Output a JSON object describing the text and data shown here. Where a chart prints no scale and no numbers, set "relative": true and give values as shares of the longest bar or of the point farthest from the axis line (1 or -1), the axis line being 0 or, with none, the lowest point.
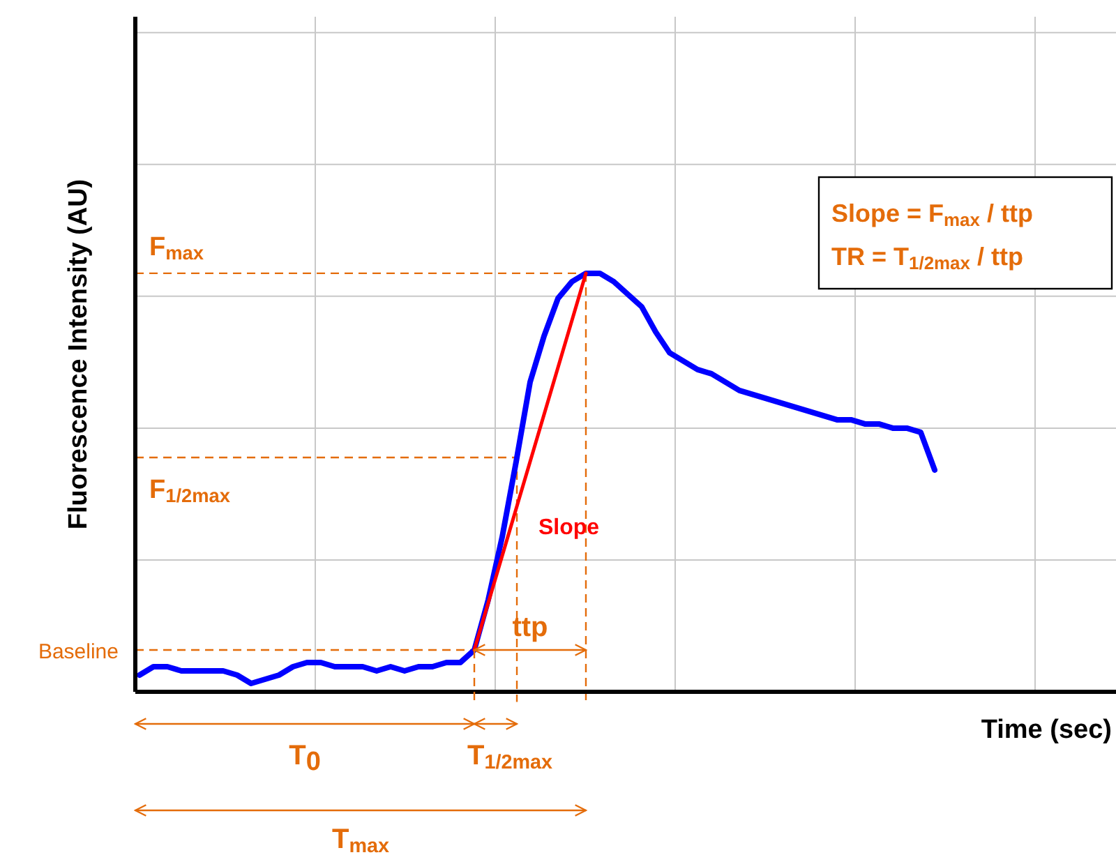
{
  "chart_data": {
    "type": "line",
    "relative": true,
    "xlabel": "Time (sec)",
    "ylabel": "Fluorescence Intensity (AU)",
    "categories": [
      null,
      null,
      null,
      null,
      null,
      null,
      null,
      null,
      null,
      null,
      null,
      null,
      null,
      null,
      null,
      null,
      null,
      null,
      null,
      null,
      null,
      null,
      null,
      null,
      null,
      null,
      null,
      null,
      null,
      null,
      null,
      null,
      null,
      null,
      null,
      null,
      null,
      null,
      null,
      null,
      null,
      null,
      null,
      null,
      null,
      null,
      null,
      null,
      null,
      null,
      null,
      null,
      null,
      null,
      null,
      null,
      null,
      null
    ],
    "series": [
      {
        "color": "#0000ff",
        "values": [
          0.04,
          0.06,
          0.06,
          0.05,
          0.05,
          0.05,
          0.05,
          0.04,
          0.02,
          0.03,
          0.04,
          0.06,
          0.07,
          0.07,
          0.06,
          0.06,
          0.06,
          0.05,
          0.06,
          0.05,
          0.06,
          0.06,
          0.07,
          0.07,
          0.1,
          0.22,
          0.37,
          0.55,
          0.74,
          0.85,
          0.94,
          0.98,
          1,
          1,
          0.98,
          0.95,
          0.92,
          0.86,
          0.81,
          0.79,
          0.77,
          0.76,
          0.74,
          0.72,
          0.71,
          0.7,
          0.69,
          0.68,
          0.67,
          0.66,
          0.65,
          0.65,
          0.64,
          0.64,
          0.63,
          0.63,
          0.62,
          0.53
        ]
      },
      {
        "name": "Slope",
        "color": "#ff0000",
        "values": [
          null,
          null,
          null,
          null,
          null,
          null,
          null,
          null,
          null,
          null,
          null,
          null,
          null,
          null,
          null,
          null,
          null,
          null,
          null,
          null,
          null,
          null,
          null,
          null,
          0.1,
          null,
          null,
          null,
          null,
          null,
          null,
          null,
          1,
          null,
          null,
          null,
          null,
          null,
          null,
          null,
          null,
          null,
          null,
          null,
          null,
          null,
          null,
          null,
          null,
          null,
          null,
          null,
          null,
          null,
          null,
          null,
          null,
          null
        ]
      }
    ],
    "ref_lines": [
      {
        "axis": "y",
        "value": 1,
        "label": "F$_{max}$",
        "color": "#e46c0a",
        "line_style": "dashed"
      },
      {
        "axis": "y",
        "value": 0.56,
        "label": "F$_{1/2max}$",
        "color": "#e46c0a",
        "line_style": "dashed"
      },
      {
        "axis": "y",
        "value": 0.1,
        "label": "Baseline",
        "color": "#e46c0a",
        "line_style": "dashed"
      }
    ],
    "annotations": [
      "Slope = F$_{max}$ / ttp",
      "TR = T$_{1/2max}$ / ttp",
      "T$_{0}$",
      "T$_{1/2max}$",
      "T$_{max}$",
      "ttp"
    ],
    "grid": true,
    "legend": false,
    "tick_labels": false,
    "marker": "none",
    "line_style": "solid"
  }
}
